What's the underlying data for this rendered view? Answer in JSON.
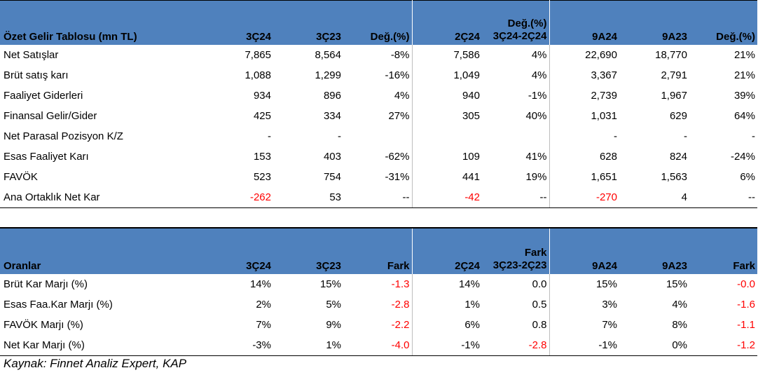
{
  "income": {
    "header": [
      "Özet Gelir Tablosu (mn TL)",
      "3Ç24",
      "3Ç23",
      "Değ.(%)",
      "2Ç24",
      [
        "Değ.(%)",
        "3Ç24-2Ç24"
      ],
      "9A24",
      "9A23",
      "Değ.(%)"
    ],
    "rows": [
      [
        "Net Satışlar",
        "7,865",
        "8,564",
        "-8%",
        "7,586",
        "4%",
        "22,690",
        "18,770",
        "21%"
      ],
      [
        "Brüt satış karı",
        "1,088",
        "1,299",
        "-16%",
        "1,049",
        "4%",
        "3,367",
        "2,791",
        "21%"
      ],
      [
        "Faaliyet Giderleri",
        "934",
        "896",
        "4%",
        "940",
        "-1%",
        "2,739",
        "1,967",
        "39%"
      ],
      [
        "Finansal Gelir/Gider",
        "425",
        "334",
        "27%",
        "305",
        "40%",
        "1,031",
        "629",
        "64%"
      ],
      [
        "Net Parasal Pozisyon K/Z",
        "-",
        "-",
        "",
        "",
        "",
        "-",
        "-",
        "-"
      ],
      [
        "Esas Faaliyet Karı",
        "153",
        "403",
        "-62%",
        "109",
        "41%",
        "628",
        "824",
        "-24%"
      ],
      [
        "FAVÖK",
        "523",
        "754",
        "-31%",
        "441",
        "19%",
        "1,651",
        "1,563",
        "6%"
      ],
      [
        "Ana Ortaklık Net Kar",
        "-262",
        "53",
        "--",
        "-42",
        "--",
        "-270",
        "4",
        "--"
      ]
    ],
    "red_cells": [
      [
        7,
        1
      ],
      [
        7,
        4
      ],
      [
        7,
        6
      ]
    ]
  },
  "ratios": {
    "header": [
      "Oranlar",
      "3Ç24",
      "3Ç23",
      "Fark",
      "2Ç24",
      [
        "Fark",
        "3Ç23-2Ç23"
      ],
      "9A24",
      "9A23",
      "Fark"
    ],
    "rows": [
      [
        "Brüt Kar Marjı (%)",
        "14%",
        "15%",
        "-1.3",
        "14%",
        "0.0",
        "15%",
        "15%",
        "-0.0"
      ],
      [
        "Esas Faa.Kar Marjı (%)",
        "2%",
        "5%",
        "-2.8",
        "1%",
        "0.5",
        "3%",
        "4%",
        "-1.6"
      ],
      [
        "FAVÖK Marjı (%)",
        "7%",
        "9%",
        "-2.2",
        "6%",
        "0.8",
        "7%",
        "8%",
        "-1.1"
      ],
      [
        "Net Kar Marjı (%)",
        "-3%",
        "1%",
        "-4.0",
        "-1%",
        "-2.8",
        "-1%",
        "0%",
        "-1.2"
      ]
    ],
    "red_cells": [
      [
        0,
        3
      ],
      [
        0,
        8
      ],
      [
        1,
        3
      ],
      [
        1,
        8
      ],
      [
        2,
        3
      ],
      [
        2,
        8
      ],
      [
        3,
        3
      ],
      [
        3,
        5
      ],
      [
        3,
        8
      ]
    ]
  },
  "source": "Kaynak: Finnet Analiz Expert, KAP",
  "colors": {
    "header_bg": "#4f81bd",
    "negative": "#ff0000"
  }
}
